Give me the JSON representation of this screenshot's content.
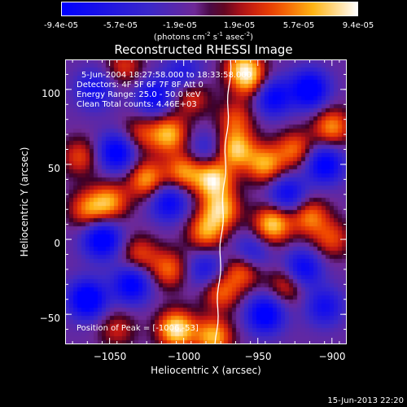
{
  "colorbar": {
    "ticks": [
      "-9.4e-05",
      "-5.7e-05",
      "-1.9e-05",
      "1.9e-05",
      "5.7e-05",
      "9.4e-05"
    ],
    "unit_main": "(photons cm",
    "unit_exp1": "-2",
    "unit_mid": " s",
    "unit_exp2": "-1",
    "unit_end": " asec",
    "unit_exp3": "-2",
    "unit_close": ")"
  },
  "annotations": {
    "time": "5-Jun-2004 18:27:58.000 to 18:33:58.000",
    "detectors": "Detectors: 4F 5F 6F 7F 8F  Att 0",
    "energy": "Energy Range: 25.0 - 50.0 keV",
    "clean": "Clean     Total counts: 4.46E+03",
    "peak": "Position of Peak = [-1006,-53]"
  },
  "footer": "15-Jun-2013 22:20",
  "chart_data": {
    "type": "heatmap",
    "title": "Reconstructed RHESSI Image",
    "xlabel": "Heliocentric X (arcsec)",
    "ylabel": "Heliocentric Y (arcsec)",
    "xlim": [
      -1080,
      -890
    ],
    "ylim": [
      -70,
      120
    ],
    "xticks": [
      -1050,
      -1000,
      -950,
      -900
    ],
    "yticks": [
      -50,
      0,
      50,
      100
    ],
    "xtick_labels": [
      "−1050",
      "−1000",
      "−950",
      "−900"
    ],
    "ytick_labels": [
      "−50",
      "0",
      "50",
      "100"
    ],
    "color_range": [
      -9.4e-05,
      9.4e-05
    ],
    "colormap": "blue-purple-red-yellow-white",
    "limb_line": true,
    "blobs": [
      {
        "x": -1045,
        "y": 58,
        "v": -0.9
      },
      {
        "x": -1055,
        "y": 0,
        "v": -0.95
      },
      {
        "x": -1020,
        "y": 95,
        "v": -0.7
      },
      {
        "x": -1060,
        "y": 100,
        "v": -0.6
      },
      {
        "x": -1010,
        "y": 25,
        "v": -0.75
      },
      {
        "x": -1035,
        "y": -30,
        "v": -0.85
      },
      {
        "x": -1065,
        "y": -40,
        "v": -1.0
      },
      {
        "x": -985,
        "y": 60,
        "v": -0.4
      },
      {
        "x": -940,
        "y": 95,
        "v": -0.8
      },
      {
        "x": -915,
        "y": 100,
        "v": -0.95
      },
      {
        "x": -930,
        "y": 30,
        "v": -0.7
      },
      {
        "x": -905,
        "y": 50,
        "v": -0.85
      },
      {
        "x": -920,
        "y": -20,
        "v": -0.8
      },
      {
        "x": -955,
        "y": -10,
        "v": -0.6
      },
      {
        "x": -945,
        "y": -50,
        "v": -0.9
      },
      {
        "x": -905,
        "y": -45,
        "v": -0.6
      },
      {
        "x": -985,
        "y": -20,
        "v": -0.55
      },
      {
        "x": -1000,
        "y": 110,
        "v": -0.5
      },
      {
        "x": -1025,
        "y": 40,
        "v": 0.75
      },
      {
        "x": -1010,
        "y": 70,
        "v": 0.8
      },
      {
        "x": -1000,
        "y": 45,
        "v": 0.7
      },
      {
        "x": -980,
        "y": 40,
        "v": 0.95
      },
      {
        "x": -975,
        "y": 20,
        "v": 0.8
      },
      {
        "x": -985,
        "y": 5,
        "v": 0.7
      },
      {
        "x": -965,
        "y": 60,
        "v": 0.85
      },
      {
        "x": -955,
        "y": 105,
        "v": 0.6
      },
      {
        "x": -965,
        "y": 80,
        "v": 0.5
      },
      {
        "x": -945,
        "y": 50,
        "v": 0.75
      },
      {
        "x": -940,
        "y": 10,
        "v": 0.9
      },
      {
        "x": -925,
        "y": 60,
        "v": 0.6
      },
      {
        "x": -900,
        "y": 75,
        "v": 0.7
      },
      {
        "x": -915,
        "y": 15,
        "v": 0.65
      },
      {
        "x": -960,
        "y": -20,
        "v": 0.7
      },
      {
        "x": -975,
        "y": -35,
        "v": 0.6
      },
      {
        "x": -1005,
        "y": -60,
        "v": 1.0
      },
      {
        "x": -980,
        "y": -65,
        "v": 0.8
      },
      {
        "x": -1050,
        "y": 25,
        "v": 0.7
      },
      {
        "x": -1070,
        "y": 55,
        "v": 0.5
      },
      {
        "x": -1065,
        "y": 20,
        "v": 0.6
      },
      {
        "x": -1010,
        "y": -20,
        "v": 0.6
      },
      {
        "x": -1030,
        "y": -10,
        "v": 0.5
      },
      {
        "x": -1030,
        "y": 70,
        "v": 0.45
      },
      {
        "x": -960,
        "y": 115,
        "v": 0.7
      },
      {
        "x": -1040,
        "y": 115,
        "v": 0.45
      },
      {
        "x": -900,
        "y": 0,
        "v": 0.5
      },
      {
        "x": -1045,
        "y": -60,
        "v": 0.4
      },
      {
        "x": -930,
        "y": -30,
        "v": 0.55
      },
      {
        "x": -995,
        "y": 95,
        "v": 0.5
      }
    ]
  }
}
